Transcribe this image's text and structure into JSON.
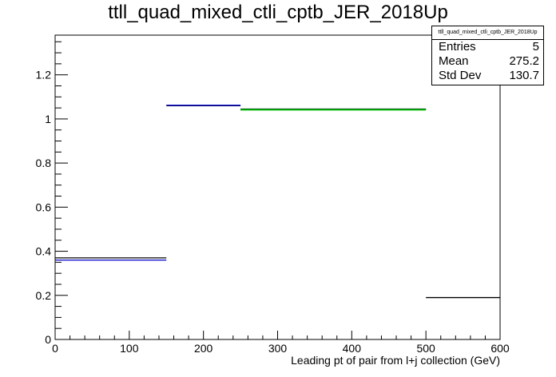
{
  "chart_data": {
    "type": "step",
    "title": "ttll_quad_mixed_ctli_cptb_JER_2018Up",
    "xlabel": "Leading pt of pair from l+j collection (GeV)",
    "ylabel": "",
    "xlim": [
      0,
      600
    ],
    "ylim": [
      0,
      1.38
    ],
    "xticks": [
      0,
      100,
      200,
      300,
      400,
      500,
      600
    ],
    "yticks": [
      0,
      0.2,
      0.4,
      0.6,
      0.8,
      1,
      1.2
    ],
    "ytick_labels": [
      "0",
      "0.2",
      "0.4",
      "0.6",
      "0.8",
      "1",
      "1.2"
    ],
    "grid": false,
    "series": [
      {
        "color": "#000000",
        "bins": [
          [
            0,
            150,
            0.37
          ],
          [
            150,
            250,
            1.06
          ],
          [
            250,
            500,
            1.045
          ],
          [
            500,
            600,
            0.19
          ]
        ]
      },
      {
        "color": "#0000cc",
        "bins": [
          [
            0,
            150,
            0.36
          ],
          [
            150,
            250,
            1.062
          ],
          [
            250,
            500,
            1.043
          ]
        ]
      },
      {
        "color": "#00bb00",
        "bins": [
          [
            250,
            500,
            1.042
          ]
        ]
      }
    ],
    "stats": {
      "title": "ttll_quad_mixed_ctli_cptb_JER_2018Up",
      "rows": [
        {
          "label": "Entries",
          "value": "5"
        },
        {
          "label": "Mean",
          "value": "275.2"
        },
        {
          "label": "Std Dev",
          "value": "130.7"
        }
      ]
    }
  }
}
